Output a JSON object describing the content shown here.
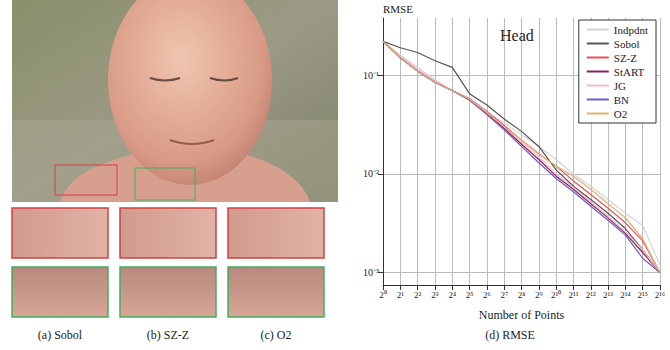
{
  "figure": {
    "captions": [
      "(a) Sobol",
      "(b) SZ-Z",
      "(c) O2",
      "(d) RMSE"
    ]
  },
  "chart_data": {
    "type": "line",
    "title": "Head",
    "x_label": "Number of Points",
    "y_label": "RMSE",
    "log": true,
    "grid": true,
    "legend": "upper right",
    "xlim": [
      1,
      65536
    ],
    "xticks": [
      {
        "value": 1,
        "label": "2⁰"
      },
      {
        "value": 2,
        "label": "2¹"
      },
      {
        "value": 4,
        "label": "2²"
      },
      {
        "value": 8,
        "label": "2³"
      },
      {
        "value": 16,
        "label": "2⁴"
      },
      {
        "value": 32,
        "label": "2⁵"
      },
      {
        "value": 64,
        "label": "2⁶"
      },
      {
        "value": 128,
        "label": "2⁷"
      },
      {
        "value": 256,
        "label": "2⁸"
      },
      {
        "value": 512,
        "label": "2⁹"
      },
      {
        "value": 1024,
        "label": "2¹⁰"
      },
      {
        "value": 2048,
        "label": "2¹¹"
      },
      {
        "value": 4096,
        "label": "2¹²"
      },
      {
        "value": 8192,
        "label": "2¹³"
      },
      {
        "value": 16384,
        "label": "2¹⁴"
      },
      {
        "value": 32768,
        "label": "2¹⁵"
      },
      {
        "value": 65536,
        "label": "2¹⁶"
      }
    ],
    "ylim": [
      0.00075,
      0.38
    ],
    "yticks": [
      {
        "value": 0.001,
        "label": "10⁻³"
      },
      {
        "value": 0.01,
        "label": "10⁻²"
      },
      {
        "value": 0.1,
        "label": "10⁻¹"
      }
    ],
    "x": [
      1,
      2,
      4,
      8,
      16,
      32,
      64,
      128,
      256,
      512,
      1024,
      2048,
      4096,
      8192,
      16384,
      32768,
      65536
    ],
    "series": [
      {
        "name": "Indpdnt",
        "color": "#d4d4d4",
        "values": [
          0.22,
          0.16,
          0.12,
          0.09,
          0.07,
          0.055,
          0.042,
          0.033,
          0.025,
          0.019,
          0.014,
          0.01,
          0.0075,
          0.0055,
          0.004,
          0.003,
          0.0012
        ]
      },
      {
        "name": "Sobol",
        "color": "#555555",
        "values": [
          0.22,
          0.19,
          0.17,
          0.14,
          0.12,
          0.065,
          0.05,
          0.036,
          0.027,
          0.019,
          0.011,
          0.0075,
          0.0055,
          0.004,
          0.0028,
          0.0017,
          0.001
        ]
      },
      {
        "name": "SZ-Z",
        "color": "#e8505b",
        "values": [
          0.22,
          0.15,
          0.11,
          0.085,
          0.07,
          0.058,
          0.043,
          0.031,
          0.022,
          0.016,
          0.012,
          0.0085,
          0.0062,
          0.0045,
          0.0032,
          0.0021,
          0.001
        ]
      },
      {
        "name": "StART",
        "color": "#8b2252",
        "values": [
          0.22,
          0.15,
          0.11,
          0.085,
          0.07,
          0.056,
          0.041,
          0.029,
          0.02,
          0.014,
          0.0095,
          0.007,
          0.005,
          0.0036,
          0.0025,
          0.0016,
          0.001
        ]
      },
      {
        "name": "JG",
        "color": "#f2b8c8",
        "values": [
          0.22,
          0.155,
          0.115,
          0.088,
          0.07,
          0.057,
          0.042,
          0.03,
          0.021,
          0.015,
          0.01,
          0.0073,
          0.0052,
          0.0037,
          0.0026,
          0.0017,
          0.001
        ]
      },
      {
        "name": "BN",
        "color": "#6a5acd",
        "values": [
          0.22,
          0.15,
          0.11,
          0.085,
          0.07,
          0.056,
          0.04,
          0.028,
          0.019,
          0.013,
          0.009,
          0.0066,
          0.0047,
          0.0034,
          0.0024,
          0.0014,
          0.001
        ]
      },
      {
        "name": "O2",
        "color": "#e0b070",
        "values": [
          0.22,
          0.15,
          0.11,
          0.085,
          0.07,
          0.057,
          0.042,
          0.03,
          0.022,
          0.016,
          0.012,
          0.0095,
          0.007,
          0.005,
          0.0036,
          0.0022,
          0.001
        ]
      }
    ]
  }
}
